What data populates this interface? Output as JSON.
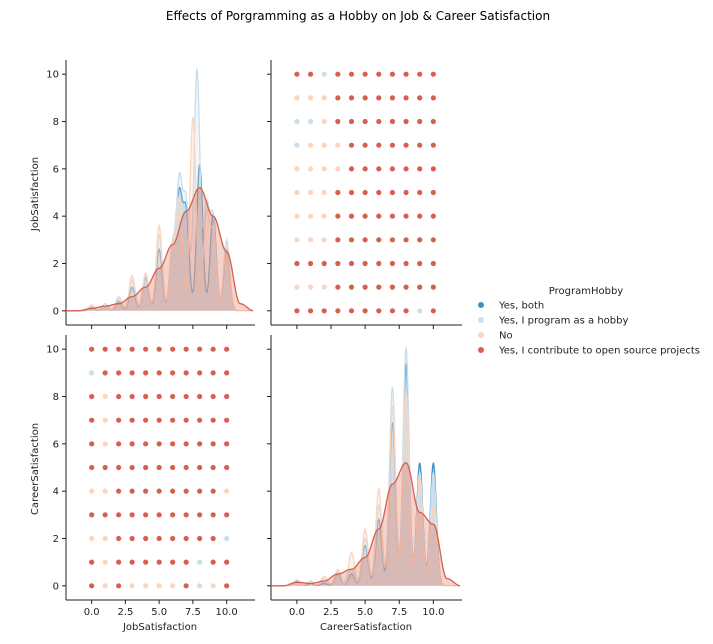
{
  "figure": {
    "title": "Effects of Porgramming as a Hobby on Job & Career Satisfaction"
  },
  "chart_data": {
    "type": "scatter",
    "subtype": "pairplot",
    "variables": [
      "JobSatisfaction",
      "CareerSatisfaction"
    ],
    "hue": "ProgramHobby",
    "axis": {
      "JobSatisfaction": {
        "range": [
          -1.9,
          12.1
        ],
        "ticks": [
          0,
          2.5,
          5,
          7.5,
          10
        ],
        "tick_labels": [
          "0.0",
          "2.5",
          "5.0",
          "7.5",
          "10.0"
        ]
      },
      "CareerSatisfaction": {
        "range": [
          -0.6,
          10.6
        ],
        "ticks": [
          0,
          2,
          4,
          6,
          8,
          10
        ],
        "tick_labels": [
          "0",
          "2",
          "4",
          "6",
          "8",
          "10"
        ],
        "x_range": [
          -1.9,
          12.1
        ],
        "x_ticks": [
          0,
          2.5,
          5,
          7.5,
          10
        ],
        "x_tick_labels": [
          "0.0",
          "2.5",
          "5.0",
          "7.5",
          "10.0"
        ]
      },
      "diag_density_range": [
        -0.6,
        10.6
      ],
      "diag_y_tick_labels": [
        "0",
        "2",
        "4",
        "6",
        "8",
        "10"
      ]
    },
    "legend": {
      "title": "ProgramHobby",
      "placement": "center-right",
      "entries": [
        {
          "name": "Yes, both",
          "color": "#3f8fc0"
        },
        {
          "name": "Yes, I program as a hobby",
          "color": "#c8dfee"
        },
        {
          "name": "No",
          "color": "#fcd5be"
        },
        {
          "name": "Yes, I contribute to open source projects",
          "color": "#d6604d"
        }
      ]
    },
    "scatter_upper": {
      "x_var": "CareerSatisfaction",
      "y_var": "JobSatisfaction",
      "x_values": [
        0,
        1,
        2,
        3,
        4,
        5,
        6,
        7,
        8,
        9,
        10
      ],
      "points_by_row": [
        {
          "y": 10,
          "colors": [
            "#d6604d",
            "#d6604d",
            "#c8dfee",
            "#d6604d",
            "#d6604d",
            "#d6604d",
            "#d6604d",
            "#d6604d",
            "#d6604d",
            "#d6604d",
            "#d6604d"
          ]
        },
        {
          "y": 9,
          "colors": [
            "#fcd5be",
            "#fcd5be",
            "#fcd5be",
            "#d6604d",
            "#d6604d",
            "#d6604d",
            "#d6604d",
            "#d6604d",
            "#d6604d",
            "#d6604d",
            "#d6604d"
          ]
        },
        {
          "y": 8,
          "colors": [
            "#c8dfee",
            "#c8dfee",
            "#fcd5be",
            "#d6604d",
            "#d6604d",
            "#d6604d",
            "#d6604d",
            "#d6604d",
            "#d6604d",
            "#d6604d",
            "#d6604d"
          ]
        },
        {
          "y": 7,
          "colors": [
            "#c8dfee",
            "#fcd5be",
            "#fcd5be",
            "#fcd5be",
            "#d6604d",
            "#d6604d",
            "#d6604d",
            "#d6604d",
            "#d6604d",
            "#d6604d",
            "#d6604d"
          ]
        },
        {
          "y": 6,
          "colors": [
            "#fcd5be",
            "#fcd5be",
            "#fcd5be",
            "#fcd5be",
            "#d6604d",
            "#d6604d",
            "#d6604d",
            "#d6604d",
            "#d6604d",
            "#d6604d",
            "#d6604d"
          ]
        },
        {
          "y": 5,
          "colors": [
            "#fcd5be",
            "#fcd5be",
            "#fcd5be",
            "#d6604d",
            "#d6604d",
            "#d6604d",
            "#d6604d",
            "#d6604d",
            "#d6604d",
            "#d6604d",
            "#d6604d"
          ]
        },
        {
          "y": 4,
          "colors": [
            "#fcd5be",
            "#fcd5be",
            "#fcd5be",
            "#d6604d",
            "#d6604d",
            "#d6604d",
            "#d6604d",
            "#d6604d",
            "#d6604d",
            "#d6604d",
            "#d6604d"
          ]
        },
        {
          "y": 3,
          "colors": [
            "#fcd5be",
            "#fcd5be",
            "#fcd5be",
            "#d6604d",
            "#d6604d",
            "#d6604d",
            "#d6604d",
            "#d6604d",
            "#d6604d",
            "#d6604d",
            "#d6604d"
          ]
        },
        {
          "y": 2,
          "colors": [
            "#d6604d",
            "#d6604d",
            "#d6604d",
            "#d6604d",
            "#d6604d",
            "#d6604d",
            "#d6604d",
            "#d6604d",
            "#d6604d",
            "#d6604d",
            "#d6604d"
          ]
        },
        {
          "y": 1,
          "colors": [
            "#fcd5be",
            "#fcd5be",
            "#fcd5be",
            "#d6604d",
            "#d6604d",
            "#d6604d",
            "#d6604d",
            "#d6604d",
            "#d6604d",
            "#d6604d",
            "#d6604d"
          ]
        },
        {
          "y": 0,
          "colors": [
            "#d6604d",
            "#d6604d",
            "#d6604d",
            "#d6604d",
            "#d6604d",
            "#d6604d",
            "#d6604d",
            "#d6604d",
            "#d6604d",
            "#c8dfee",
            "#d6604d"
          ]
        }
      ]
    },
    "scatter_lower": {
      "x_var": "JobSatisfaction",
      "y_var": "CareerSatisfaction",
      "x_values": [
        0,
        1,
        2,
        3,
        4,
        5,
        6,
        7,
        8,
        9,
        10
      ],
      "points_by_row": [
        {
          "y": 10,
          "colors": [
            "#d6604d",
            "#d6604d",
            "#d6604d",
            "#d6604d",
            "#d6604d",
            "#d6604d",
            "#d6604d",
            "#d6604d",
            "#d6604d",
            "#d6604d",
            "#d6604d"
          ]
        },
        {
          "y": 9,
          "colors": [
            "#c8dfee",
            "#d6604d",
            "#d6604d",
            "#d6604d",
            "#d6604d",
            "#d6604d",
            "#d6604d",
            "#d6604d",
            "#d6604d",
            "#d6604d",
            "#d6604d"
          ]
        },
        {
          "y": 8,
          "colors": [
            "#d6604d",
            "#fcd5be",
            "#d6604d",
            "#d6604d",
            "#d6604d",
            "#d6604d",
            "#d6604d",
            "#d6604d",
            "#d6604d",
            "#d6604d",
            "#d6604d"
          ]
        },
        {
          "y": 7,
          "colors": [
            "#d6604d",
            "#fcd5be",
            "#d6604d",
            "#d6604d",
            "#d6604d",
            "#d6604d",
            "#d6604d",
            "#d6604d",
            "#d6604d",
            "#d6604d",
            "#d6604d"
          ]
        },
        {
          "y": 6,
          "colors": [
            "#d6604d",
            "#fcd5be",
            "#d6604d",
            "#d6604d",
            "#d6604d",
            "#d6604d",
            "#d6604d",
            "#d6604d",
            "#d6604d",
            "#d6604d",
            "#d6604d"
          ]
        },
        {
          "y": 5,
          "colors": [
            "#d6604d",
            "#d6604d",
            "#d6604d",
            "#d6604d",
            "#d6604d",
            "#d6604d",
            "#d6604d",
            "#d6604d",
            "#d6604d",
            "#d6604d",
            "#d6604d"
          ]
        },
        {
          "y": 4,
          "colors": [
            "#fcd5be",
            "#fcd5be",
            "#d6604d",
            "#d6604d",
            "#d6604d",
            "#d6604d",
            "#d6604d",
            "#d6604d",
            "#d6604d",
            "#d6604d",
            "#fcd5be"
          ]
        },
        {
          "y": 3,
          "colors": [
            "#d6604d",
            "#d6604d",
            "#d6604d",
            "#d6604d",
            "#d6604d",
            "#d6604d",
            "#d6604d",
            "#d6604d",
            "#d6604d",
            "#d6604d",
            "#d6604d"
          ]
        },
        {
          "y": 2,
          "colors": [
            "#fcd5be",
            "#fcd5be",
            "#d6604d",
            "#d6604d",
            "#d6604d",
            "#d6604d",
            "#d6604d",
            "#d6604d",
            "#d6604d",
            "#d6604d",
            "#c8dfee"
          ]
        },
        {
          "y": 1,
          "colors": [
            "#d6604d",
            "#fcd5be",
            "#d6604d",
            "#d6604d",
            "#d6604d",
            "#d6604d",
            "#d6604d",
            "#d6604d",
            "#c8dfee",
            "#d6604d",
            "#d6604d"
          ]
        },
        {
          "y": 0,
          "colors": [
            "#d6604d",
            "#fcd5be",
            "#d6604d",
            "#fcd5be",
            "#fcd5be",
            "#fcd5be",
            "#fcd5be",
            "#d6604d",
            "#c8dfee",
            "#fcd5be",
            "#d6604d"
          ]
        }
      ]
    },
    "density_job": [
      {
        "name": "Yes, both",
        "color": "#3f8fc0",
        "peaks": [
          [
            0,
            0.15
          ],
          [
            1,
            0.2
          ],
          [
            2,
            0.4
          ],
          [
            3,
            1.0
          ],
          [
            4,
            1.4
          ],
          [
            5,
            2.6
          ],
          [
            6,
            2.6
          ],
          [
            6.5,
            4.7
          ],
          [
            7,
            4.1
          ],
          [
            8,
            6.2
          ],
          [
            9,
            4.1
          ],
          [
            10,
            2.6
          ]
        ]
      },
      {
        "name": "Yes, I program as a hobby",
        "color": "#c8dfee",
        "peaks": [
          [
            0,
            0.2
          ],
          [
            1,
            0.3
          ],
          [
            2,
            0.6
          ],
          [
            3,
            1.3
          ],
          [
            4,
            1.5
          ],
          [
            5,
            3.2
          ],
          [
            6,
            2.5
          ],
          [
            6.5,
            5.3
          ],
          [
            7,
            4.5
          ],
          [
            7.8,
            10.2
          ],
          [
            8.5,
            4.3
          ],
          [
            9,
            3.8
          ],
          [
            10,
            3.0
          ]
        ]
      },
      {
        "name": "No",
        "color": "#fcd5be",
        "peaks": [
          [
            0,
            0.25
          ],
          [
            1,
            0.2
          ],
          [
            2,
            0.5
          ],
          [
            3,
            1.5
          ],
          [
            4,
            1.6
          ],
          [
            5,
            3.6
          ],
          [
            6,
            2.5
          ],
          [
            6.5,
            4.6
          ],
          [
            7.5,
            8.2
          ],
          [
            8.5,
            4.0
          ],
          [
            9,
            3.1
          ],
          [
            10,
            2.8
          ]
        ]
      },
      {
        "name": "Yes, I contribute to open source projects",
        "color": "#d6604d",
        "smooth": [
          [
            -2,
            0
          ],
          [
            -1,
            0
          ],
          [
            0,
            0.1
          ],
          [
            1,
            0.2
          ],
          [
            2,
            0.3
          ],
          [
            3,
            0.6
          ],
          [
            4,
            1.0
          ],
          [
            5,
            1.8
          ],
          [
            6,
            2.8
          ],
          [
            7,
            4.2
          ],
          [
            8,
            5.2
          ],
          [
            9,
            4.0
          ],
          [
            10,
            2.5
          ],
          [
            11,
            0.3
          ],
          [
            12,
            0
          ]
        ]
      }
    ],
    "density_career": [
      {
        "name": "Yes, both",
        "color": "#3f8fc0",
        "peaks": [
          [
            0,
            0.2
          ],
          [
            1,
            0.1
          ],
          [
            2,
            0.1
          ],
          [
            3,
            0.5
          ],
          [
            4,
            0.5
          ],
          [
            5,
            1.7
          ],
          [
            6,
            2.8
          ],
          [
            7,
            6.9
          ],
          [
            8,
            9.4
          ],
          [
            9,
            5.2
          ],
          [
            10,
            5.2
          ]
        ]
      },
      {
        "name": "Yes, I program as a hobby",
        "color": "#c8dfee",
        "peaks": [
          [
            0,
            0.25
          ],
          [
            1,
            0.2
          ],
          [
            2,
            0.3
          ],
          [
            3,
            0.6
          ],
          [
            4,
            0.7
          ],
          [
            5,
            2.0
          ],
          [
            6,
            3.4
          ],
          [
            7,
            8.4
          ],
          [
            8,
            10.1
          ],
          [
            9,
            4.8
          ],
          [
            10,
            4.8
          ]
        ]
      },
      {
        "name": "No",
        "color": "#fcd5be",
        "peaks": [
          [
            0,
            0.25
          ],
          [
            1,
            0.2
          ],
          [
            2,
            0.4
          ],
          [
            3,
            0.7
          ],
          [
            4,
            1.4
          ],
          [
            5,
            2.4
          ],
          [
            6,
            4.1
          ],
          [
            7,
            7.6
          ],
          [
            8,
            8.2
          ],
          [
            9,
            4.6
          ],
          [
            10,
            3.4
          ]
        ]
      },
      {
        "name": "Yes, I contribute to open source projects",
        "color": "#d6604d",
        "smooth": [
          [
            -2,
            0
          ],
          [
            -1,
            0
          ],
          [
            0,
            0.15
          ],
          [
            1,
            0.1
          ],
          [
            2,
            0.2
          ],
          [
            3,
            0.5
          ],
          [
            4,
            0.7
          ],
          [
            5,
            1.2
          ],
          [
            6,
            2.4
          ],
          [
            7,
            4.3
          ],
          [
            8,
            5.2
          ],
          [
            9,
            3.1
          ],
          [
            10,
            2.6
          ],
          [
            11,
            0.3
          ],
          [
            12,
            0
          ]
        ]
      }
    ]
  }
}
